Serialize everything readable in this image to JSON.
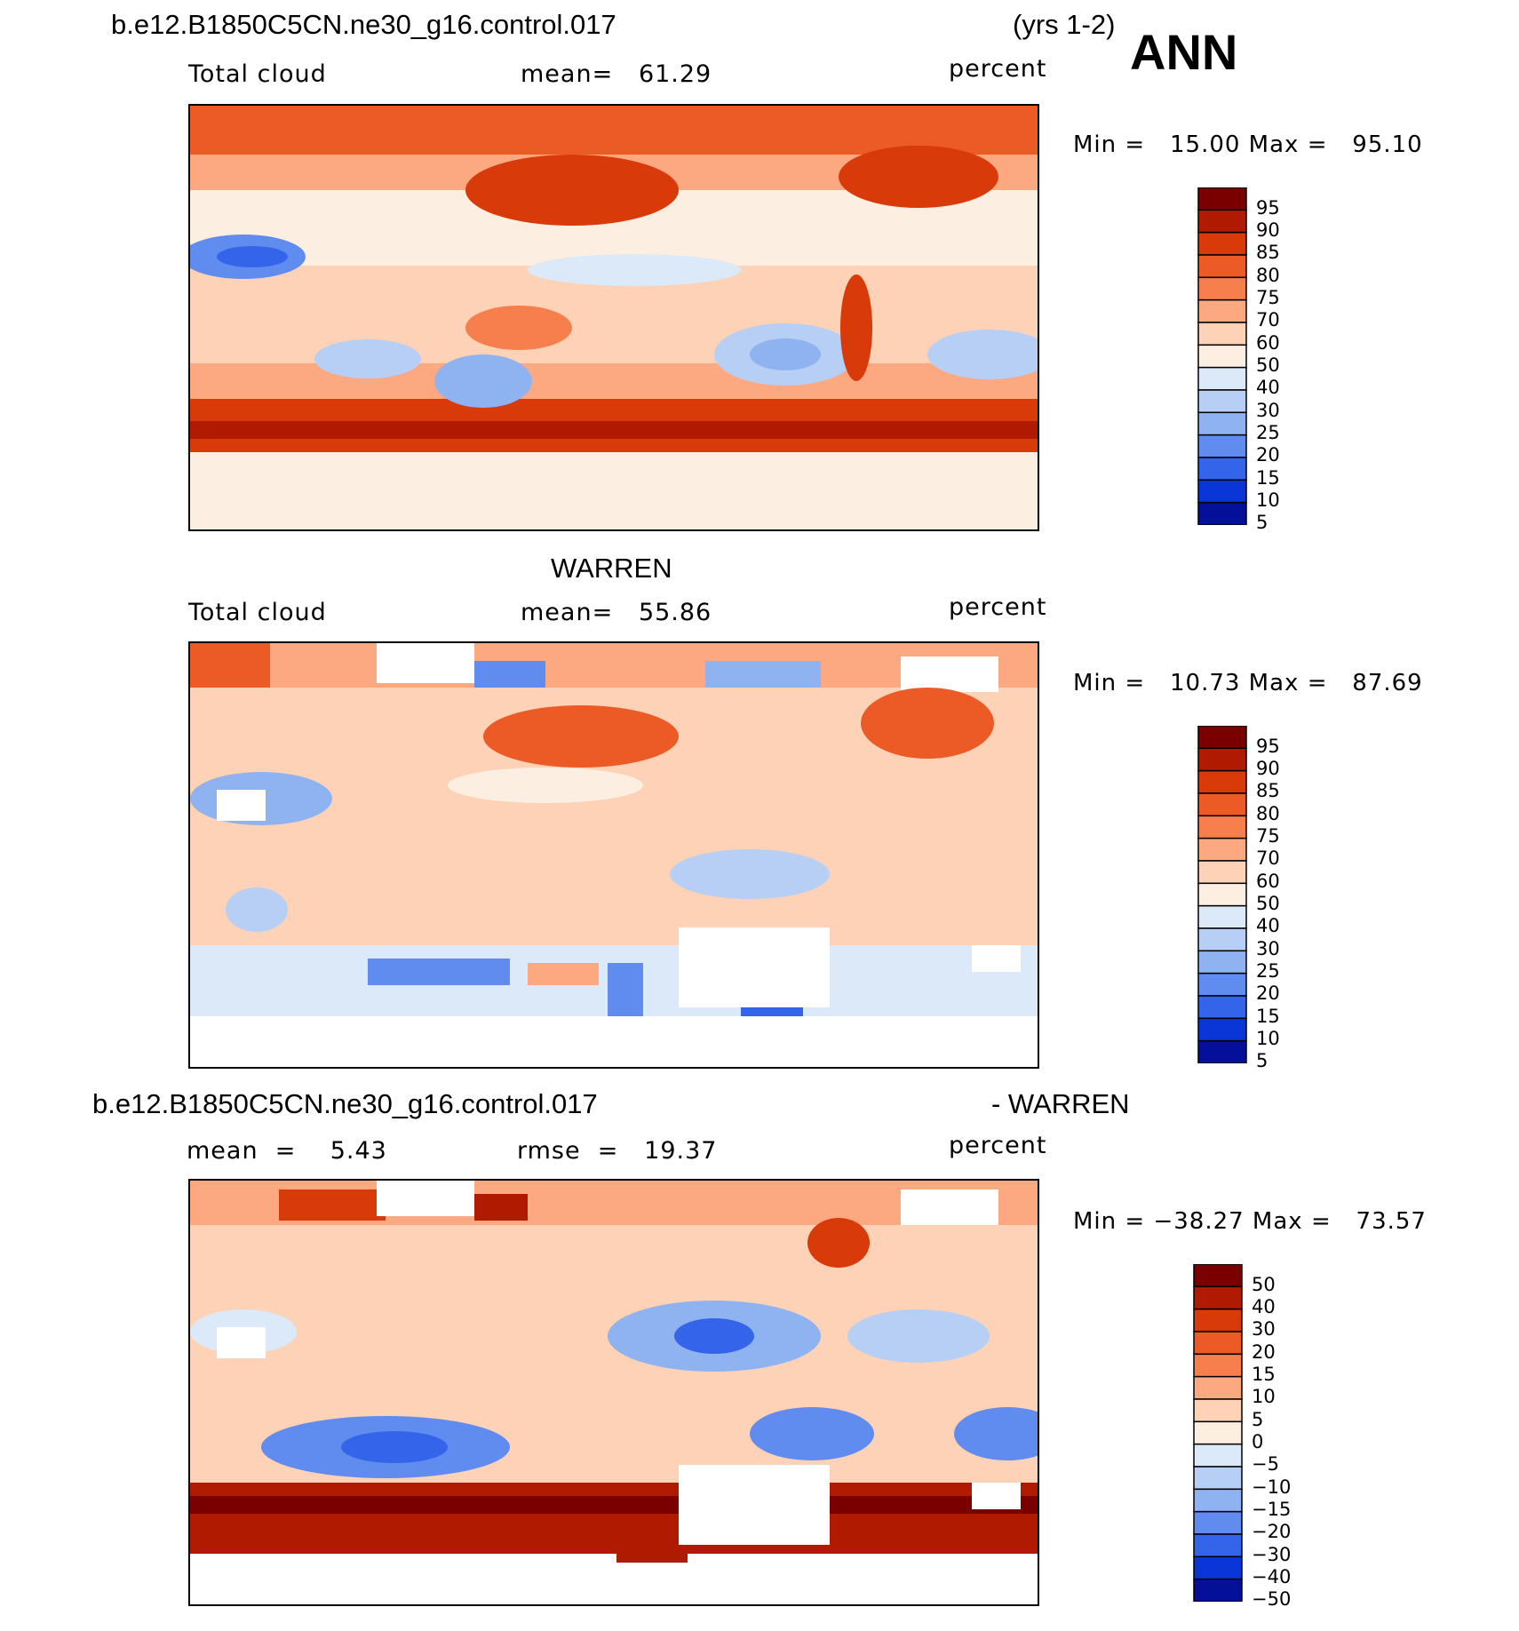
{
  "header": {
    "case_title": "b.e12.B1850C5CN.ne30_g16.control.017",
    "years": "(yrs 1-2)",
    "season": "ANN"
  },
  "panels": [
    {
      "title": "",
      "left_label": "Total cloud",
      "mid_label": "mean=   61.29",
      "units": "percent",
      "minmax": "Min =   15.00 Max =   95.10"
    },
    {
      "title": "WARREN",
      "left_label": "Total cloud",
      "mid_label": "mean=   55.86",
      "units": "percent",
      "minmax": "Min =   10.73 Max =   87.69"
    },
    {
      "title_left": "b.e12.B1850C5CN.ne30_g16.control.017",
      "title_right": "- WARREN",
      "left_label": "mean  =    5.43",
      "mid_label": "rmse  =   19.37",
      "units": "percent",
      "minmax": "Min = −38.27 Max =   73.57"
    }
  ],
  "chart_data": [
    {
      "type": "heatmap",
      "title": "b.e12.B1850C5CN.ne30_g16.control.017 (yrs 1-2) ANN - Total cloud",
      "variable": "Total cloud",
      "units": "percent",
      "mean": 61.29,
      "min": 15.0,
      "max": 95.1,
      "colorbar_levels": [
        95,
        90,
        85,
        80,
        75,
        70,
        60,
        50,
        40,
        30,
        25,
        20,
        15,
        10,
        5
      ]
    },
    {
      "type": "heatmap",
      "title": "WARREN - Total cloud",
      "variable": "Total cloud",
      "units": "percent",
      "mean": 55.86,
      "min": 10.73,
      "max": 87.69,
      "colorbar_levels": [
        95,
        90,
        85,
        80,
        75,
        70,
        60,
        50,
        40,
        30,
        25,
        20,
        15,
        10,
        5
      ]
    },
    {
      "type": "heatmap",
      "title": "b.e12.B1850C5CN.ne30_g16.control.017 - WARREN",
      "units": "percent",
      "mean": 5.43,
      "rmse": 19.37,
      "min": -38.27,
      "max": 73.57,
      "colorbar_levels": [
        "50",
        "40",
        "30",
        "20",
        "15",
        "10",
        "5",
        "0",
        "−5",
        "−10",
        "−15",
        "−20",
        "−30",
        "−40",
        "−50"
      ]
    }
  ],
  "colors": {
    "scale": [
      "#7a0000",
      "#b01a00",
      "#d83a0a",
      "#ec5a26",
      "#f77f4e",
      "#fca982",
      "#fdd2b6",
      "#fdeee2",
      "#dbe9f8",
      "#b7cff4",
      "#8fb2f0",
      "#5f8cee",
      "#3464ea",
      "#0a36d8",
      "#04109a"
    ]
  }
}
